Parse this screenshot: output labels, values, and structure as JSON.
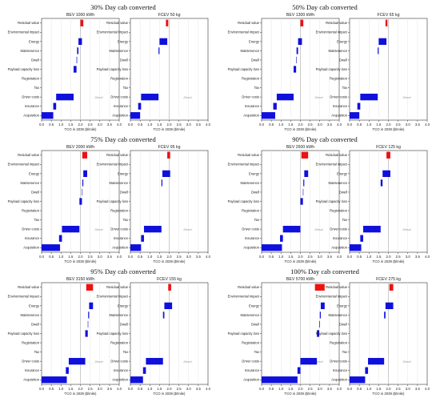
{
  "categories": [
    "Residual value",
    "Environmental impact",
    "Energy",
    "Maintenence",
    "Dwell",
    "Payload capacity loss",
    "Registration",
    "Tax",
    "Driver costs",
    "Insurance",
    "Acquisition"
  ],
  "xlabel": "TCO in 2039 ($/mile)",
  "xticks": [
    "0.0",
    "0.5",
    "1.0",
    "1.5",
    "2.0",
    "2.5",
    "3.0",
    "3.5",
    "4.0"
  ],
  "xlim": [
    0,
    4
  ],
  "diesel_label": "Diesel",
  "colors": {
    "positive": "#1010dd",
    "negative": "#ee1111",
    "diesel_line": "#bbbbbb"
  },
  "chart_data": [
    {
      "group": "30% Day cab converted",
      "panels": [
        {
          "title": "BEV 1000 kWh",
          "type": "bar",
          "diesel": 2.0,
          "segments": [
            [
              2.0,
              2.15,
              "neg"
            ],
            null,
            [
              1.9,
              2.08,
              "pos"
            ],
            [
              1.83,
              1.9,
              "pos"
            ],
            [
              1.8,
              1.83,
              "pos"
            ],
            [
              1.65,
              1.8,
              "pos"
            ],
            null,
            null,
            [
              0.75,
              1.65,
              "pos"
            ],
            [
              0.6,
              0.75,
              "pos"
            ],
            [
              0.0,
              0.6,
              "pos"
            ]
          ]
        },
        {
          "title": "FCEV 50 kg",
          "type": "bar",
          "diesel": 2.0,
          "segments": [
            [
              1.83,
              1.95,
              "neg"
            ],
            null,
            [
              1.5,
              1.9,
              "pos"
            ],
            [
              1.45,
              1.5,
              "pos"
            ],
            null,
            null,
            null,
            null,
            [
              0.55,
              1.45,
              "pos"
            ],
            [
              0.4,
              0.55,
              "pos"
            ],
            [
              0.0,
              0.5,
              "pos"
            ]
          ]
        }
      ]
    },
    {
      "group": "50% Day cab converted",
      "panels": [
        {
          "title": "BEV 1300 kWh",
          "type": "bar",
          "diesel": 2.0,
          "segments": [
            [
              2.0,
              2.15,
              "neg"
            ],
            null,
            [
              1.88,
              2.08,
              "pos"
            ],
            [
              1.8,
              1.88,
              "pos"
            ],
            [
              1.78,
              1.8,
              "pos"
            ],
            [
              1.65,
              1.78,
              "pos"
            ],
            null,
            null,
            [
              0.78,
              1.65,
              "pos"
            ],
            [
              0.6,
              0.78,
              "pos"
            ],
            [
              0.0,
              0.7,
              "pos"
            ]
          ]
        },
        {
          "title": "FCEV 65 kg",
          "type": "bar",
          "diesel": 2.0,
          "segments": [
            [
              1.85,
              1.95,
              "neg"
            ],
            null,
            [
              1.5,
              1.9,
              "pos"
            ],
            [
              1.45,
              1.5,
              "pos"
            ],
            null,
            null,
            null,
            null,
            [
              0.55,
              1.45,
              "pos"
            ],
            [
              0.4,
              0.55,
              "pos"
            ],
            [
              0.0,
              0.5,
              "pos"
            ]
          ]
        }
      ]
    },
    {
      "group": "75% Day cab converted",
      "panels": [
        {
          "title": "BEV 2000 kWh",
          "type": "bar",
          "diesel": 2.0,
          "segments": [
            [
              2.1,
              2.35,
              "neg"
            ],
            null,
            [
              2.15,
              2.35,
              "pos"
            ],
            [
              2.1,
              2.15,
              "pos"
            ],
            [
              2.08,
              2.1,
              "pos"
            ],
            [
              1.95,
              2.08,
              "pos"
            ],
            null,
            null,
            [
              1.05,
              1.95,
              "pos"
            ],
            [
              0.9,
              1.05,
              "pos"
            ],
            [
              0.0,
              0.95,
              "pos"
            ]
          ]
        },
        {
          "title": "FCEV 95 kg",
          "type": "bar",
          "diesel": 2.0,
          "segments": [
            [
              1.9,
              2.05,
              "neg"
            ],
            null,
            [
              1.65,
              2.05,
              "pos"
            ],
            [
              1.6,
              1.65,
              "pos"
            ],
            null,
            null,
            null,
            null,
            [
              0.7,
              1.6,
              "pos"
            ],
            [
              0.55,
              0.7,
              "pos"
            ],
            [
              0.0,
              0.55,
              "pos"
            ]
          ]
        }
      ]
    },
    {
      "group": "90% Day cab converted",
      "panels": [
        {
          "title": "BEV 2600 kWh",
          "type": "bar",
          "diesel": 2.0,
          "segments": [
            [
              2.05,
              2.4,
              "neg"
            ],
            null,
            [
              2.2,
              2.4,
              "pos"
            ],
            [
              2.15,
              2.2,
              "pos"
            ],
            [
              2.13,
              2.15,
              "pos"
            ],
            [
              2.0,
              2.13,
              "pos"
            ],
            null,
            null,
            [
              1.1,
              2.0,
              "pos"
            ],
            [
              0.95,
              1.1,
              "pos"
            ],
            [
              0.0,
              1.05,
              "pos"
            ]
          ]
        },
        {
          "title": "FCEV 125 kg",
          "type": "bar",
          "diesel": 2.0,
          "segments": [
            [
              1.9,
              2.1,
              "neg"
            ],
            null,
            [
              1.7,
              2.1,
              "pos"
            ],
            [
              1.6,
              1.7,
              "pos"
            ],
            null,
            null,
            null,
            null,
            [
              0.7,
              1.6,
              "pos"
            ],
            [
              0.55,
              0.7,
              "pos"
            ],
            [
              0.0,
              0.6,
              "pos"
            ]
          ]
        }
      ]
    },
    {
      "group": "95% Day cab converted",
      "panels": [
        {
          "title": "BEV 3150 kWh",
          "type": "bar",
          "diesel": 2.0,
          "segments": [
            [
              2.3,
              2.65,
              "neg"
            ],
            null,
            [
              2.45,
              2.65,
              "pos"
            ],
            [
              2.4,
              2.45,
              "pos"
            ],
            [
              2.38,
              2.4,
              "pos"
            ],
            [
              2.25,
              2.38,
              "pos"
            ],
            null,
            null,
            [
              1.4,
              2.25,
              "pos"
            ],
            [
              1.25,
              1.4,
              "pos"
            ],
            [
              0.0,
              1.3,
              "pos"
            ]
          ]
        },
        {
          "title": "FCEV 155 kg",
          "type": "bar",
          "diesel": 2.0,
          "segments": [
            [
              1.95,
              2.1,
              "neg"
            ],
            null,
            [
              1.75,
              2.15,
              "pos"
            ],
            [
              1.68,
              1.75,
              "pos"
            ],
            null,
            null,
            null,
            null,
            [
              0.8,
              1.68,
              "pos"
            ],
            [
              0.65,
              0.8,
              "pos"
            ],
            [
              0.0,
              0.65,
              "pos"
            ]
          ]
        }
      ]
    },
    {
      "group": "100% Day cab converted",
      "panels": [
        {
          "title": "BEV 5700 kWh",
          "type": "bar",
          "diesel": 2.0,
          "segments": [
            [
              2.75,
              3.25,
              "neg"
            ],
            null,
            [
              3.05,
              3.25,
              "pos"
            ],
            [
              3.0,
              3.05,
              "pos"
            ],
            [
              2.97,
              3.0,
              "pos"
            ],
            [
              2.85,
              2.97,
              "pos"
            ],
            null,
            null,
            [
              2.0,
              2.85,
              "pos"
            ],
            [
              1.85,
              2.0,
              "pos"
            ],
            [
              0.0,
              1.85,
              "pos"
            ]
          ]
        },
        {
          "title": "FCEV 275 kg",
          "type": "bar",
          "diesel": 2.0,
          "segments": [
            [
              2.05,
              2.25,
              "neg"
            ],
            null,
            [
              1.85,
              2.25,
              "pos"
            ],
            [
              1.78,
              1.85,
              "pos"
            ],
            null,
            null,
            null,
            null,
            [
              0.95,
              1.78,
              "pos"
            ],
            [
              0.8,
              0.95,
              "pos"
            ],
            [
              0.0,
              0.8,
              "pos"
            ]
          ]
        }
      ]
    }
  ]
}
